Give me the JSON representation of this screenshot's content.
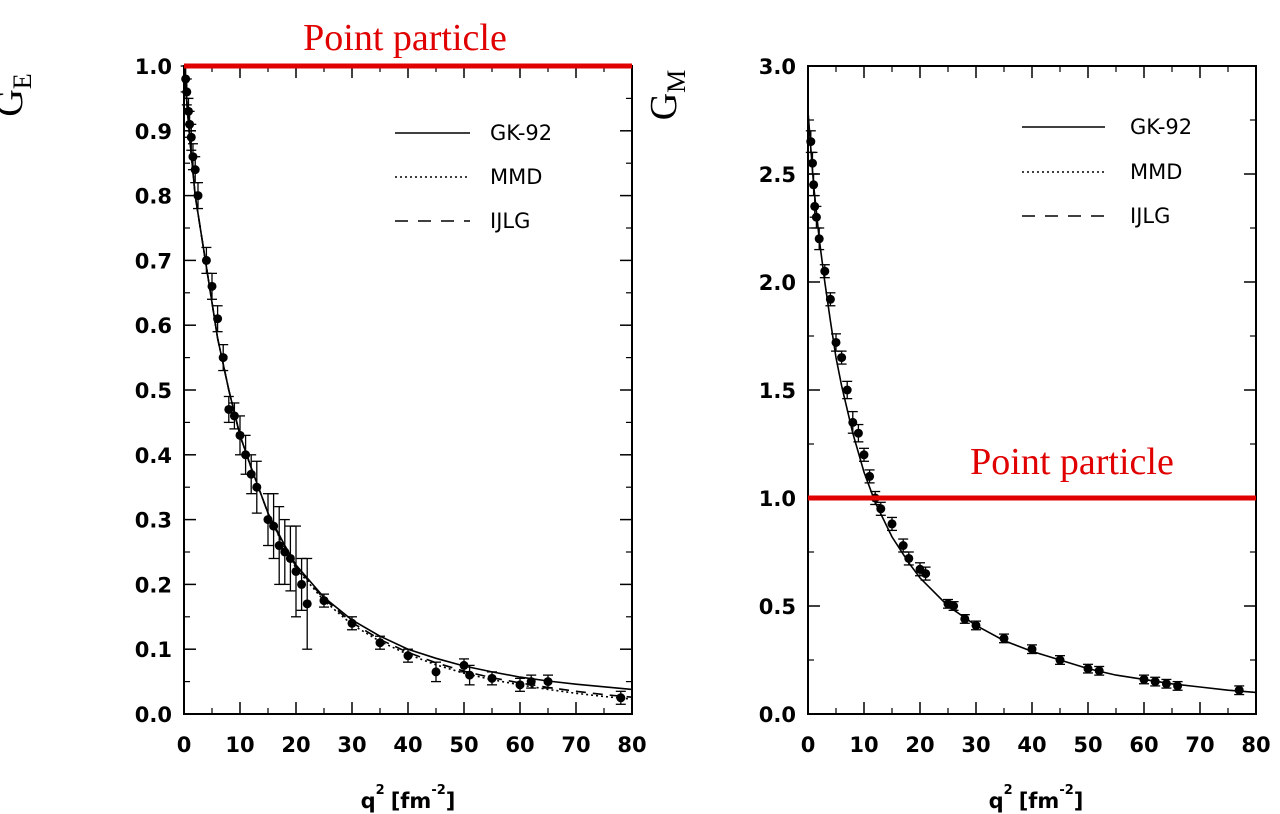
{
  "colors": {
    "annotation": "#e00000",
    "ink": "#000000",
    "background": "#ffffff"
  },
  "chart_data": [
    {
      "type": "line",
      "ylabel_main": "G",
      "ylabel_sub": "E",
      "xlabel_main": "q",
      "xlabel_sup": "2",
      "xlabel_unit": "[fm",
      "xlabel_unit_sup": "-2",
      "xlabel_close": "]",
      "xlim": [
        0,
        80
      ],
      "ylim": [
        0,
        1.0
      ],
      "x_major_ticks": [
        0,
        10,
        20,
        30,
        40,
        50,
        60,
        70,
        80
      ],
      "x_tick_labels": [
        "0",
        "10",
        "20",
        "30",
        "40",
        "50",
        "60",
        "70",
        "80"
      ],
      "y_major_ticks": [
        0,
        0.1,
        0.2,
        0.3,
        0.4,
        0.5,
        0.6,
        0.7,
        0.8,
        0.9,
        1.0
      ],
      "y_tick_labels": [
        "0.0",
        "0.1",
        "0.2",
        "0.3",
        "0.4",
        "0.5",
        "0.6",
        "0.7",
        "0.8",
        "0.9",
        "1.0"
      ],
      "legend": [
        {
          "label": "GK-92",
          "style": "solid"
        },
        {
          "label": "MMD",
          "style": "dotted"
        },
        {
          "label": "IJLG",
          "style": "dashed"
        }
      ],
      "series": [
        {
          "name": "GK-92",
          "style": "solid",
          "x": [
            0,
            1,
            2,
            4,
            6,
            8,
            10,
            12,
            15,
            18,
            20,
            25,
            30,
            35,
            40,
            45,
            50,
            55,
            60,
            65,
            70,
            75,
            80
          ],
          "y": [
            1.0,
            0.89,
            0.8,
            0.69,
            0.58,
            0.5,
            0.43,
            0.38,
            0.31,
            0.26,
            0.23,
            0.18,
            0.145,
            0.12,
            0.1,
            0.086,
            0.074,
            0.065,
            0.057,
            0.051,
            0.046,
            0.042,
            0.038
          ]
        },
        {
          "name": "MMD",
          "style": "dotted",
          "x": [
            0,
            1,
            2,
            4,
            6,
            8,
            10,
            12,
            15,
            18,
            20,
            25,
            30,
            35,
            40,
            45,
            50,
            55,
            60,
            65,
            70,
            75,
            80
          ],
          "y": [
            1.0,
            0.89,
            0.8,
            0.69,
            0.58,
            0.5,
            0.43,
            0.38,
            0.31,
            0.255,
            0.225,
            0.175,
            0.138,
            0.112,
            0.092,
            0.076,
            0.063,
            0.053,
            0.045,
            0.038,
            0.032,
            0.027,
            0.023
          ]
        },
        {
          "name": "IJLG",
          "style": "dashed",
          "x": [
            0,
            1,
            2,
            4,
            6,
            8,
            10,
            12,
            15,
            18,
            20,
            25,
            30,
            35,
            40,
            45,
            50,
            55,
            60,
            65,
            70,
            75,
            80
          ],
          "y": [
            1.0,
            0.89,
            0.8,
            0.69,
            0.58,
            0.5,
            0.43,
            0.38,
            0.31,
            0.257,
            0.228,
            0.178,
            0.141,
            0.115,
            0.095,
            0.079,
            0.066,
            0.056,
            0.048,
            0.041,
            0.035,
            0.03,
            0.026
          ]
        }
      ],
      "points": {
        "x": [
          0.3,
          0.5,
          0.8,
          1.0,
          1.3,
          1.6,
          2.0,
          2.5,
          4.0,
          5.0,
          6.0,
          7.0,
          8.0,
          9.0,
          10.0,
          11.0,
          12.0,
          13.0,
          15.0,
          16.0,
          17.0,
          18.0,
          19.0,
          20.0,
          21.0,
          22.0,
          25.0,
          30.0,
          35.0,
          40.0,
          45.0,
          50.0,
          51.0,
          55.0,
          60.0,
          62.0,
          65.0,
          78.0
        ],
        "y": [
          0.98,
          0.96,
          0.93,
          0.91,
          0.89,
          0.86,
          0.84,
          0.8,
          0.7,
          0.66,
          0.61,
          0.55,
          0.47,
          0.46,
          0.43,
          0.4,
          0.37,
          0.35,
          0.3,
          0.29,
          0.26,
          0.25,
          0.24,
          0.22,
          0.2,
          0.17,
          0.175,
          0.14,
          0.11,
          0.09,
          0.065,
          0.075,
          0.06,
          0.055,
          0.045,
          0.05,
          0.05,
          0.025
        ],
        "err": [
          0.02,
          0.02,
          0.02,
          0.02,
          0.02,
          0.02,
          0.02,
          0.02,
          0.02,
          0.02,
          0.02,
          0.02,
          0.02,
          0.02,
          0.03,
          0.03,
          0.03,
          0.04,
          0.04,
          0.05,
          0.06,
          0.05,
          0.05,
          0.07,
          0.04,
          0.07,
          0.01,
          0.01,
          0.01,
          0.01,
          0.015,
          0.01,
          0.015,
          0.01,
          0.01,
          0.01,
          0.01,
          0.01
        ]
      },
      "reference_line": {
        "y": 1.0,
        "label": "Point particle"
      }
    },
    {
      "type": "line",
      "ylabel_main": "G",
      "ylabel_sub": "M",
      "xlabel_main": "q",
      "xlabel_sup": "2",
      "xlabel_unit": "[fm",
      "xlabel_unit_sup": "-2",
      "xlabel_close": "]",
      "xlim": [
        0,
        80
      ],
      "ylim": [
        0,
        3.0
      ],
      "x_major_ticks": [
        0,
        10,
        20,
        30,
        40,
        50,
        60,
        70,
        80
      ],
      "x_tick_labels": [
        "0",
        "10",
        "20",
        "30",
        "40",
        "50",
        "60",
        "70",
        "80"
      ],
      "y_major_ticks": [
        0,
        0.5,
        1.0,
        1.5,
        2.0,
        2.5,
        3.0
      ],
      "y_tick_labels": [
        "0.0",
        "0.5",
        "1.0",
        "1.5",
        "2.0",
        "2.5",
        "3.0"
      ],
      "legend": [
        {
          "label": "GK-92",
          "style": "solid"
        },
        {
          "label": "MMD",
          "style": "dotted"
        },
        {
          "label": "IJLG",
          "style": "dashed"
        }
      ],
      "series": [
        {
          "name": "GK-92",
          "style": "solid",
          "x": [
            0,
            1,
            2,
            3,
            4,
            5,
            6,
            8,
            10,
            12,
            15,
            18,
            20,
            25,
            30,
            35,
            40,
            45,
            50,
            55,
            60,
            65,
            70,
            75,
            80
          ],
          "y": [
            2.79,
            2.45,
            2.2,
            2.0,
            1.82,
            1.65,
            1.52,
            1.3,
            1.12,
            0.98,
            0.82,
            0.7,
            0.63,
            0.5,
            0.41,
            0.34,
            0.29,
            0.25,
            0.21,
            0.18,
            0.16,
            0.14,
            0.125,
            0.11,
            0.1
          ]
        }
      ],
      "points": {
        "x": [
          0.5,
          0.8,
          1.0,
          1.2,
          1.5,
          2.0,
          3.0,
          4.0,
          5.0,
          6.0,
          7.0,
          8.0,
          9.0,
          10.0,
          11.0,
          12.0,
          13.0,
          15.0,
          17.0,
          18.0,
          20.0,
          21.0,
          25.0,
          26.0,
          28.0,
          30.0,
          35.0,
          40.0,
          45.0,
          50.0,
          52.0,
          60.0,
          62.0,
          64.0,
          66.0,
          77.0
        ],
        "y": [
          2.65,
          2.55,
          2.45,
          2.35,
          2.3,
          2.2,
          2.05,
          1.92,
          1.72,
          1.65,
          1.5,
          1.35,
          1.3,
          1.2,
          1.1,
          1.0,
          0.95,
          0.88,
          0.78,
          0.72,
          0.67,
          0.65,
          0.51,
          0.5,
          0.44,
          0.41,
          0.35,
          0.3,
          0.25,
          0.21,
          0.2,
          0.16,
          0.15,
          0.14,
          0.13,
          0.11
        ],
        "err": [
          0.05,
          0.05,
          0.05,
          0.05,
          0.05,
          0.05,
          0.03,
          0.03,
          0.04,
          0.03,
          0.04,
          0.05,
          0.04,
          0.03,
          0.03,
          0.03,
          0.03,
          0.03,
          0.03,
          0.03,
          0.03,
          0.03,
          0.02,
          0.02,
          0.02,
          0.02,
          0.02,
          0.02,
          0.02,
          0.02,
          0.02,
          0.02,
          0.02,
          0.02,
          0.02,
          0.02
        ]
      },
      "reference_line": {
        "y": 1.0,
        "label": "Point particle"
      }
    }
  ]
}
